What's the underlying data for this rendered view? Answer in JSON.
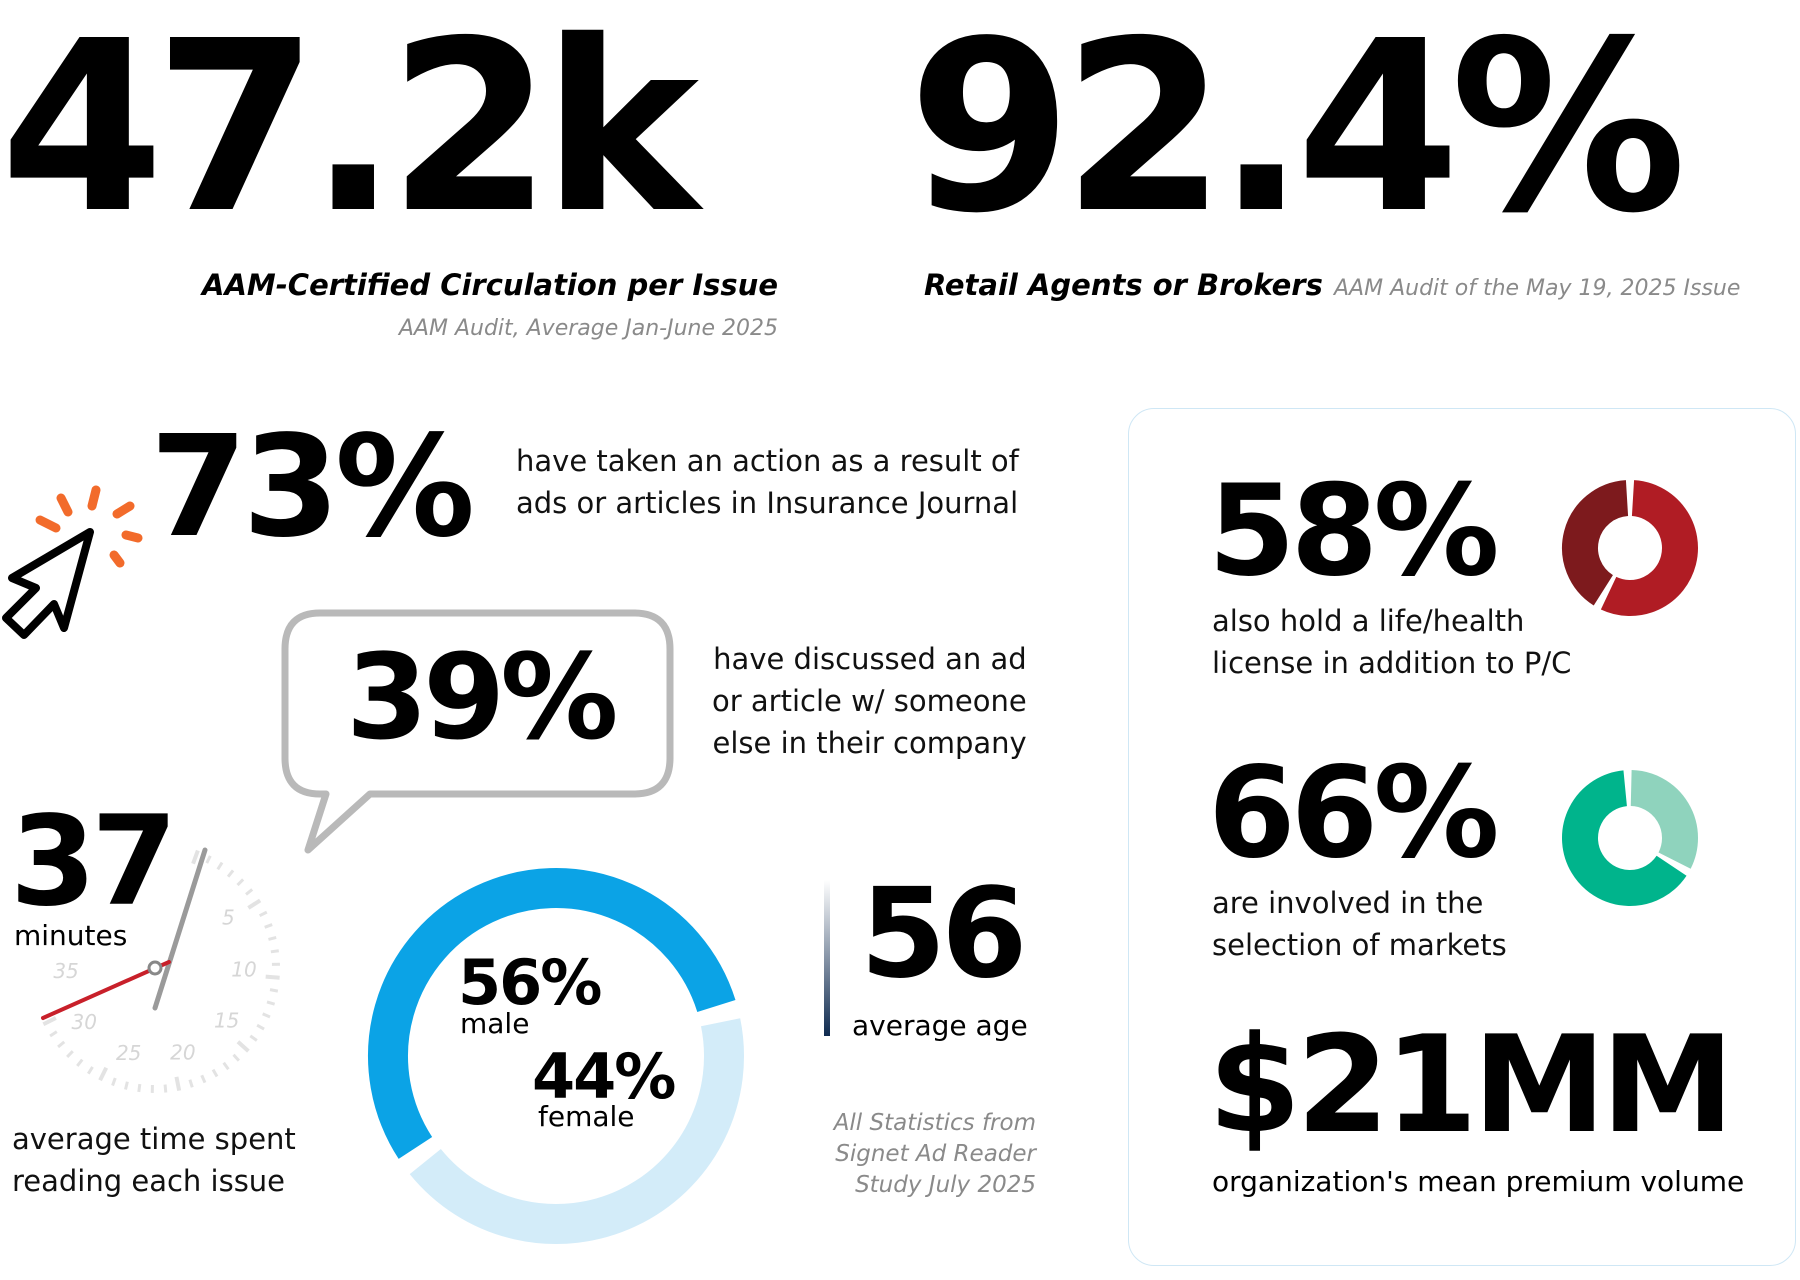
{
  "header": {
    "circulation": {
      "value": "47.2k",
      "label": "AAM-Certified Circulation per Issue",
      "source": "AAM Audit, Average Jan-June 2025"
    },
    "retail": {
      "value": "92.4%",
      "label": "Retail Agents or Brokers",
      "source": "AAM Audit of the May 19, 2025 Issue"
    }
  },
  "stats": {
    "action": {
      "value": "73%",
      "text_line1": "have taken an action as a result of",
      "text_line2": "ads or articles in Insurance Journal",
      "icon": "cursor-click-icon"
    },
    "discussed": {
      "value": "39%",
      "text_line1": "have discussed an ad",
      "text_line2": "or article w/ someone",
      "text_line3": "else in their company",
      "icon": "speech-bubble-icon"
    },
    "reading_time": {
      "value": "37",
      "unit": "minutes",
      "text_line1": "average time spent",
      "text_line2": "reading each issue",
      "dial_labels": [
        "5",
        "10",
        "15",
        "20",
        "25",
        "30",
        "35"
      ],
      "icon": "stopwatch-dial-icon"
    },
    "gender": {
      "male_value": "56%",
      "male_label": "male",
      "female_value": "44%",
      "female_label": "female",
      "male_fraction": 0.56,
      "female_fraction": 0.44,
      "male_color": "#0ba3e6",
      "female_color": "#d3ecf9"
    },
    "age": {
      "value": "56",
      "label": "average age"
    },
    "footnote": {
      "line1": "All Statistics from",
      "line2": "Signet Ad Reader",
      "line3": "Study July 2025"
    }
  },
  "panel": {
    "life_health": {
      "value": "58%",
      "text_line1": "also hold a life/health",
      "text_line2": "license in addition to P/C",
      "fraction": 0.58,
      "color_main": "#b01c24",
      "color_dark": "#7d1a1d"
    },
    "markets": {
      "value": "66%",
      "text_line1": "are involved in the",
      "text_line2": "selection of markets",
      "fraction": 0.66,
      "color_main": "#00b48c",
      "color_light": "#8fd3bd"
    },
    "premium": {
      "value": "$21MM",
      "text": "organization's mean premium volume"
    }
  },
  "colors": {
    "accent_orange": "#f26b2b",
    "bubble_gray": "#b9b9b9",
    "panel_border": "#cfe7f5",
    "dial_red": "#c8202a"
  }
}
